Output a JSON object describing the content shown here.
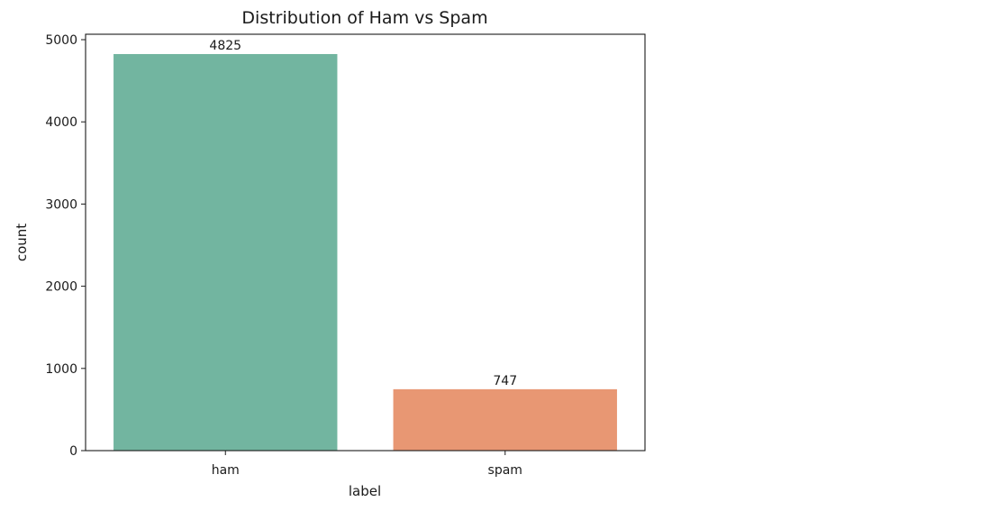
{
  "chart_data": {
    "type": "bar",
    "title": "Distribution of Ham vs Spam",
    "xlabel": "label",
    "ylabel": "count",
    "categories": [
      "ham",
      "spam"
    ],
    "values": [
      4825,
      747
    ],
    "data_labels": [
      "4825",
      "747"
    ],
    "colors": [
      "#72b5a0",
      "#e89773"
    ],
    "ylim": [
      0,
      5066
    ],
    "yticks": [
      0,
      1000,
      2000,
      3000,
      4000,
      5000
    ],
    "ytick_labels": [
      "0",
      "1000",
      "2000",
      "3000",
      "4000",
      "5000"
    ],
    "grid": false,
    "legend": "none"
  }
}
